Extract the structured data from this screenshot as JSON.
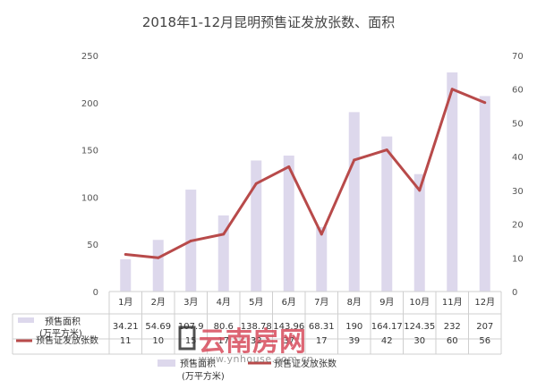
{
  "chart_data": {
    "type": "bar+line",
    "title": "2018年1-12月昆明预售证发放张数、面积",
    "categories": [
      "1月",
      "2月",
      "3月",
      "4月",
      "5月",
      "6月",
      "7月",
      "8月",
      "9月",
      "10月",
      "11月",
      "12月"
    ],
    "series": [
      {
        "name": "预售面积(万平方米)",
        "name_lines": [
          "预售面积",
          "(万平方米)"
        ],
        "type": "bar",
        "axis": "left",
        "color": "#ddd8ec",
        "values": [
          34.21,
          54.69,
          107.9,
          80.6,
          138.78,
          143.96,
          68.31,
          190,
          164.17,
          124.35,
          232,
          207
        ],
        "labels": [
          "34.21",
          "54.69",
          "107.9",
          "80.6",
          "138.78",
          "143.96",
          "68.31",
          "190",
          "164.17",
          "124.35",
          "232",
          "207"
        ]
      },
      {
        "name": "预售证发放张数",
        "type": "line",
        "axis": "right",
        "color": "#b84a4a",
        "values": [
          11,
          10,
          15,
          17,
          32,
          37,
          17,
          39,
          42,
          30,
          60,
          56
        ],
        "labels": [
          "11",
          "10",
          "15",
          "17",
          "32",
          "37",
          "17",
          "39",
          "42",
          "30",
          "60",
          "56"
        ]
      }
    ],
    "y_left": {
      "min": 0,
      "max": 250,
      "ticks": [
        0,
        50,
        100,
        150,
        200,
        250
      ]
    },
    "y_right": {
      "min": 0,
      "max": 70,
      "ticks": [
        0,
        10,
        20,
        30,
        40,
        50,
        60,
        70
      ]
    },
    "grid": false,
    "legend": "bottom",
    "data_table": true
  },
  "watermark": {
    "text_cn": "云南房网",
    "text_url": "www.ynhouse.com.cn"
  }
}
